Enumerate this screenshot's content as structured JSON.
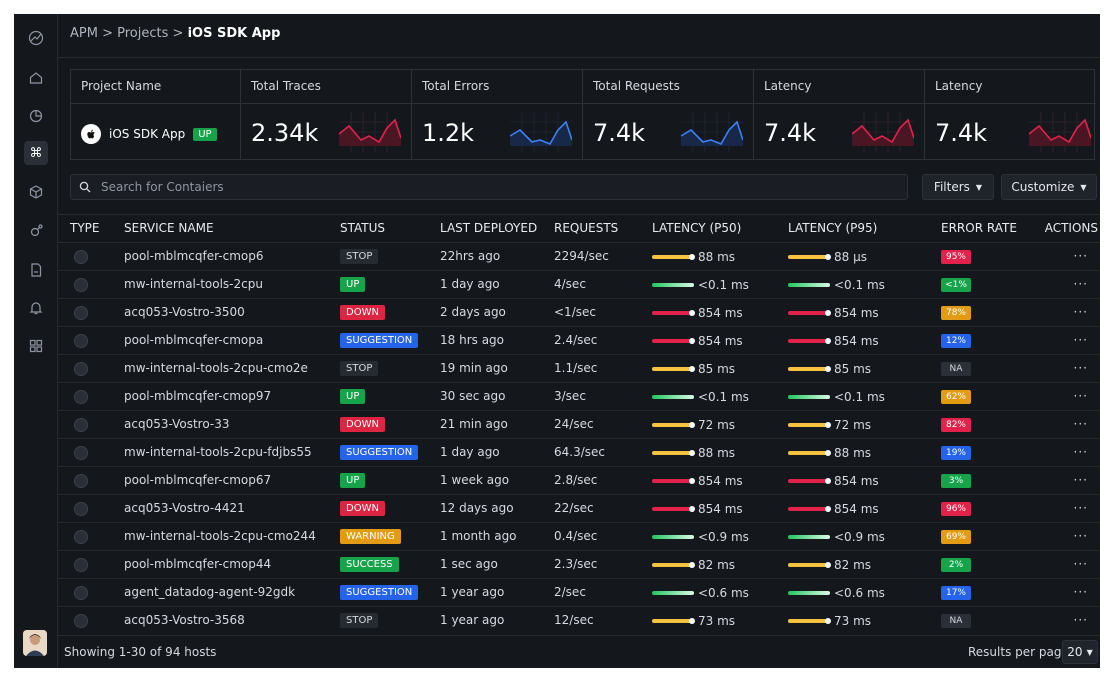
{
  "breadcrumb": {
    "apm": "APM",
    "projects": "Projects",
    "current": "iOS SDK App",
    "sep": ">"
  },
  "summary": {
    "project_header": "Project Name",
    "project_name": "iOS SDK App",
    "project_status": "UP",
    "metrics": [
      {
        "label": "Total Traces",
        "value": "2.34k",
        "color": "#e3224b"
      },
      {
        "label": "Total Errors",
        "value": "1.2k",
        "color": "#3b82f6"
      },
      {
        "label": "Total Requests",
        "value": "7.4k",
        "color": "#3b82f6"
      },
      {
        "label": "Latency",
        "value": "7.4k",
        "color": "#e3224b"
      },
      {
        "label": "Latency",
        "value": "7.4k",
        "color": "#e3224b"
      }
    ]
  },
  "search": {
    "placeholder": "Search for Contaiers"
  },
  "toolbar": {
    "filters_label": "Filters",
    "customize_label": "Customize"
  },
  "table": {
    "headers": [
      "TYPE",
      "SERVICE NAME",
      "STATUS",
      "LAST DEPLOYED",
      "REQUESTS",
      "LATENCY (P50)",
      "LATENCY (P95)",
      "ERROR RATE",
      "ACTIONS"
    ],
    "rows": [
      {
        "service": "pool-mblmcqfer-cmop6",
        "status": "STOP",
        "deployed": "22hrs ago",
        "requests": "2294/sec",
        "p50": "88 ms",
        "p95": "88 µs",
        "bar": "yellow",
        "error": "95%",
        "error_color": "red"
      },
      {
        "service": "mw-internal-tools-2cpu",
        "status": "UP",
        "deployed": "1 day ago",
        "requests": "4/sec",
        "p50": "<0.1 ms",
        "p95": "<0.1 ms",
        "bar": "green",
        "error": "<1%",
        "error_color": "green"
      },
      {
        "service": "acq053-Vostro-3500",
        "status": "DOWN",
        "deployed": "2 days ago",
        "requests": "<1/sec",
        "p50": "854 ms",
        "p95": "854 ms",
        "bar": "red",
        "error": "78%",
        "error_color": "orange"
      },
      {
        "service": "pool-mblmcqfer-cmopa",
        "status": "SUGGESTION",
        "deployed": "18 hrs ago",
        "requests": "2.4/sec",
        "p50": "854 ms",
        "p95": "854 ms",
        "bar": "red",
        "error": "12%",
        "error_color": "blue"
      },
      {
        "service": "mw-internal-tools-2cpu-cmo2e",
        "status": "STOP",
        "deployed": "19 min ago",
        "requests": "1.1/sec",
        "p50": "85 ms",
        "p95": "85 ms",
        "bar": "yellow",
        "error": "NA",
        "error_color": "na"
      },
      {
        "service": "pool-mblmcqfer-cmop97",
        "status": "UP",
        "deployed": "30 sec ago",
        "requests": "3/sec",
        "p50": "<0.1 ms",
        "p95": "<0.1 ms",
        "bar": "green",
        "error": "62%",
        "error_color": "orange"
      },
      {
        "service": "acq053-Vostro-33",
        "status": "DOWN",
        "deployed": "21 min ago",
        "requests": "24/sec",
        "p50": "72 ms",
        "p95": "72 ms",
        "bar": "yellow",
        "error": "82%",
        "error_color": "red"
      },
      {
        "service": "mw-internal-tools-2cpu-fdjbs55",
        "status": "SUGGESTION",
        "deployed": "1 day ago",
        "requests": "64.3/sec",
        "p50": "88 ms",
        "p95": "88 ms",
        "bar": "yellow",
        "error": "19%",
        "error_color": "blue"
      },
      {
        "service": "pool-mblmcqfer-cmop67",
        "status": "UP",
        "deployed": "1 week ago",
        "requests": "2.8/sec",
        "p50": "854 ms",
        "p95": "854 ms",
        "bar": "red",
        "error": "3%",
        "error_color": "green"
      },
      {
        "service": "acq053-Vostro-4421",
        "status": "DOWN",
        "deployed": "12 days ago",
        "requests": "22/sec",
        "p50": "854 ms",
        "p95": "854 ms",
        "bar": "red",
        "error": "96%",
        "error_color": "red"
      },
      {
        "service": "mw-internal-tools-2cpu-cmo244",
        "status": "WARNING",
        "deployed": "1 month ago",
        "requests": "0.4/sec",
        "p50": "<0.9 ms",
        "p95": "<0.9 ms",
        "bar": "green",
        "error": "69%",
        "error_color": "orange"
      },
      {
        "service": "pool-mblmcqfer-cmop44",
        "status": "SUCCESS",
        "deployed": "1 sec ago",
        "requests": "2.3/sec",
        "p50": "82 ms",
        "p95": "82 ms",
        "bar": "yellow",
        "error": "2%",
        "error_color": "green"
      },
      {
        "service": "agent_datadog-agent-92gdk",
        "status": "SUGGESTION",
        "deployed": "1 year ago",
        "requests": "2/sec",
        "p50": "<0.6 ms",
        "p95": "<0.6 ms",
        "bar": "green",
        "error": "17%",
        "error_color": "blue"
      },
      {
        "service": "acq053-Vostro-3568",
        "status": "STOP",
        "deployed": "1 year ago",
        "requests": "12/sec",
        "p50": "73 ms",
        "p95": "73 ms",
        "bar": "yellow",
        "error": "NA",
        "error_color": "na"
      }
    ],
    "actions_label": "···"
  },
  "footer": {
    "showing": "Showing 1-30 of 94 hosts",
    "results_per_page": "Results per page",
    "page_size": "20"
  }
}
